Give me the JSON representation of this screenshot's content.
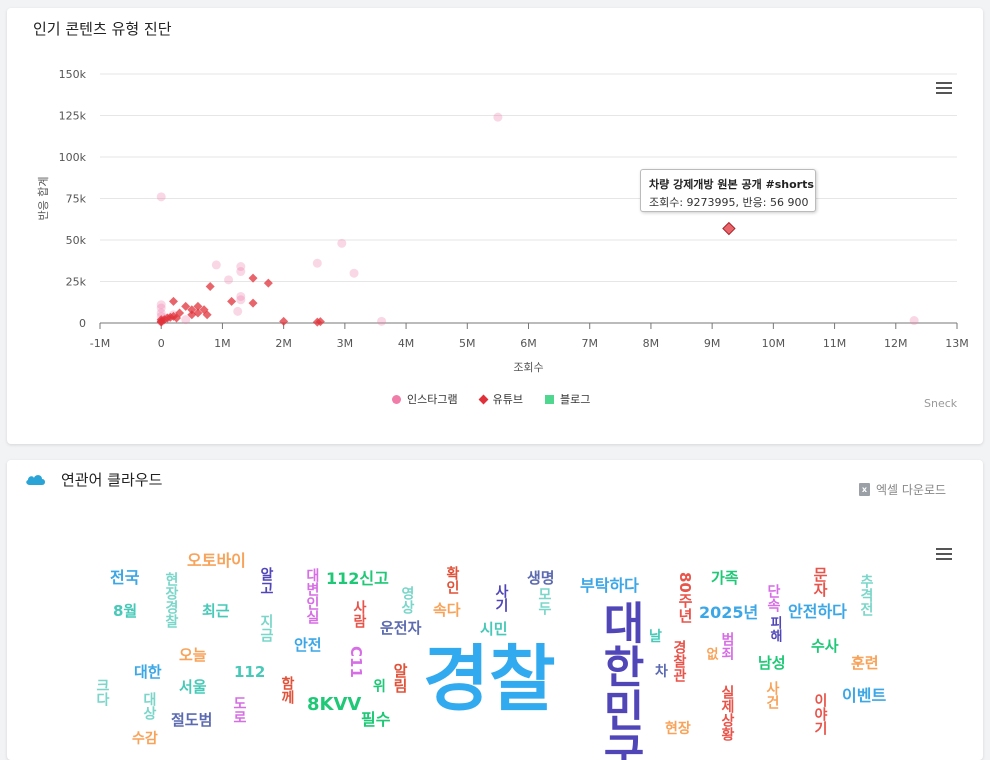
{
  "popular_chart": {
    "title": "인기 콘텐츠 유형 진단",
    "credit": "Sneck",
    "tooltip": {
      "title": "차량 강제개방 원본 공개 #shorts",
      "body": "조회수: 9273995, 반응: 56 900"
    },
    "legend": [
      {
        "label": "인스타그램",
        "color": "#f07ca8",
        "shape": "circle"
      },
      {
        "label": "유튜브",
        "color": "#e0313a",
        "shape": "diamond"
      },
      {
        "label": "블로그",
        "color": "#4fd78f",
        "shape": "square"
      }
    ]
  },
  "chart_data": {
    "type": "scatter",
    "title": "",
    "xlabel": "조회수",
    "ylabel": "반응 합계",
    "xlim": [
      -1000000,
      13000000
    ],
    "ylim": [
      0,
      150000
    ],
    "x_ticks": [
      {
        "value": -1000000,
        "label": "-1M"
      },
      {
        "value": 0,
        "label": "0"
      },
      {
        "value": 1000000,
        "label": "1M"
      },
      {
        "value": 2000000,
        "label": "2M"
      },
      {
        "value": 3000000,
        "label": "3M"
      },
      {
        "value": 4000000,
        "label": "4M"
      },
      {
        "value": 5000000,
        "label": "5M"
      },
      {
        "value": 6000000,
        "label": "6M"
      },
      {
        "value": 7000000,
        "label": "7M"
      },
      {
        "value": 8000000,
        "label": "8M"
      },
      {
        "value": 9000000,
        "label": "9M"
      },
      {
        "value": 10000000,
        "label": "10M"
      },
      {
        "value": 11000000,
        "label": "11M"
      },
      {
        "value": 12000000,
        "label": "12M"
      },
      {
        "value": 13000000,
        "label": "13M"
      }
    ],
    "y_ticks": [
      {
        "value": 0,
        "label": "0"
      },
      {
        "value": 25000,
        "label": "25k"
      },
      {
        "value": 50000,
        "label": "50k"
      },
      {
        "value": 75000,
        "label": "75k"
      },
      {
        "value": 100000,
        "label": "100k"
      },
      {
        "value": 125000,
        "label": "125k"
      },
      {
        "value": 150000,
        "label": "150k"
      }
    ],
    "legend_position": "bottom",
    "grid": "horizontal",
    "series": [
      {
        "name": "인스타그램",
        "color": "#f07ca8",
        "marker": "circle",
        "points": [
          [
            0,
            76000
          ],
          [
            5500000,
            124000
          ],
          [
            900000,
            35000
          ],
          [
            1300000,
            34000
          ],
          [
            1300000,
            31000
          ],
          [
            1100000,
            26000
          ],
          [
            1300000,
            16000
          ],
          [
            1300000,
            14000
          ],
          [
            2550000,
            36000
          ],
          [
            2950000,
            48000
          ],
          [
            3150000,
            30000
          ],
          [
            3600000,
            1000
          ],
          [
            12300000,
            1500
          ],
          [
            0,
            11000
          ],
          [
            0,
            9000
          ],
          [
            0,
            6000
          ],
          [
            0,
            4000
          ],
          [
            100000,
            3000
          ],
          [
            200000,
            5000
          ],
          [
            400000,
            2000
          ],
          [
            1250000,
            7000
          ],
          [
            0,
            1000
          ]
        ]
      },
      {
        "name": "유튜브",
        "color": "#e0313a",
        "marker": "diamond",
        "points": [
          [
            9273995,
            56900
          ],
          [
            1750000,
            24000
          ],
          [
            1500000,
            27000
          ],
          [
            800000,
            22000
          ],
          [
            1150000,
            13000
          ],
          [
            1500000,
            12000
          ],
          [
            200000,
            13000
          ],
          [
            400000,
            10000
          ],
          [
            500000,
            8000
          ],
          [
            600000,
            10000
          ],
          [
            700000,
            8000
          ],
          [
            750000,
            5000
          ],
          [
            600000,
            6000
          ],
          [
            500000,
            5000
          ],
          [
            300000,
            6000
          ],
          [
            250000,
            3000
          ],
          [
            200000,
            4000
          ],
          [
            150000,
            3500
          ],
          [
            100000,
            3000
          ],
          [
            50000,
            2000
          ],
          [
            0,
            2000
          ],
          [
            0,
            1000
          ],
          [
            0,
            500
          ],
          [
            2000000,
            1000
          ],
          [
            2550000,
            500
          ],
          [
            2600000,
            800
          ]
        ]
      },
      {
        "name": "블로그",
        "color": "#4fd78f",
        "marker": "square",
        "points": []
      }
    ]
  },
  "wordcloud": {
    "title": "연관어 클라우드",
    "excel_label": "엑셀 다운로드",
    "words": [
      {
        "text": "전국",
        "color": "#3ba7e6",
        "size": 16
      },
      {
        "text": "현장경찰",
        "color": "#7bd6c9",
        "size": 14,
        "vertical": true
      },
      {
        "text": "오토바이",
        "color": "#f8a35a",
        "size": 16
      },
      {
        "text": "알고",
        "color": "#5046b8",
        "size": 14,
        "vertical": true
      },
      {
        "text": "대변인실",
        "color": "#d66ee5",
        "size": 14,
        "vertical": true
      },
      {
        "text": "112신고",
        "color": "#1fc876",
        "size": 16
      },
      {
        "text": "확인",
        "color": "#e0533a",
        "size": 14,
        "vertical": true
      },
      {
        "text": "생명",
        "color": "#5c6bb0",
        "size": 15
      },
      {
        "text": "부탁하다",
        "color": "#3ba7e6",
        "size": 16
      },
      {
        "text": "80주년",
        "color": "#e8534a",
        "size": 15,
        "vertical": true
      },
      {
        "text": "가족",
        "color": "#1fc876",
        "size": 15
      },
      {
        "text": "문자",
        "color": "#e8534a",
        "size": 15,
        "vertical": true
      },
      {
        "text": "추격전",
        "color": "#7bd6c9",
        "size": 14,
        "vertical": true
      },
      {
        "text": "8월",
        "color": "#48c9b8",
        "size": 15
      },
      {
        "text": "최근",
        "color": "#48c9b8",
        "size": 15
      },
      {
        "text": "지금",
        "color": "#7bd6c9",
        "size": 14,
        "vertical": true
      },
      {
        "text": "사람",
        "color": "#e8534a",
        "size": 14,
        "vertical": true
      },
      {
        "text": "운전자",
        "color": "#5c6bb0",
        "size": 15
      },
      {
        "text": "속다",
        "color": "#f8a35a",
        "size": 15
      },
      {
        "text": "영상",
        "color": "#7bd6c9",
        "size": 14,
        "vertical": true
      },
      {
        "text": "사기",
        "color": "#5046b8",
        "size": 14,
        "vertical": true
      },
      {
        "text": "모두",
        "color": "#7bd6c9",
        "size": 14,
        "vertical": true
      },
      {
        "text": "시민",
        "color": "#48c9b8",
        "size": 15
      },
      {
        "text": "대한민국",
        "color": "#5046b8",
        "size": 44,
        "vertical": true
      },
      {
        "text": "2025년",
        "color": "#3ba7e6",
        "size": 16
      },
      {
        "text": "단속",
        "color": "#d66ee5",
        "size": 14,
        "vertical": true
      },
      {
        "text": "피해",
        "color": "#5046b8",
        "size": 13,
        "vertical": true
      },
      {
        "text": "안전하다",
        "color": "#3ba7e6",
        "size": 16
      },
      {
        "text": "안전",
        "color": "#3ba7e6",
        "size": 15
      },
      {
        "text": "C11",
        "color": "#d66ee5",
        "size": 15,
        "vertical": true
      },
      {
        "text": "날",
        "color": "#48c9b8",
        "size": 14
      },
      {
        "text": "경찰관",
        "color": "#e8534a",
        "size": 14,
        "vertical": true
      },
      {
        "text": "범죄",
        "color": "#d66ee5",
        "size": 14,
        "vertical": true
      },
      {
        "text": "수사",
        "color": "#1fc876",
        "size": 15
      },
      {
        "text": "대한",
        "color": "#3ba7e6",
        "size": 15
      },
      {
        "text": "오늘",
        "color": "#f8a35a",
        "size": 15
      },
      {
        "text": "112",
        "color": "#48c9b8",
        "size": 15
      },
      {
        "text": "함께",
        "color": "#e0533a",
        "size": 14,
        "vertical": true
      },
      {
        "text": "알림",
        "color": "#e0533a",
        "size": 15,
        "vertical": true
      },
      {
        "text": "경찰",
        "color": "#31aaf0",
        "size": 72
      },
      {
        "text": "차",
        "color": "#5c6bb0",
        "size": 14
      },
      {
        "text": "없",
        "color": "#f8a35a",
        "size": 13,
        "vertical": true
      },
      {
        "text": "남성",
        "color": "#1fc876",
        "size": 15
      },
      {
        "text": "훈련",
        "color": "#f8a35a",
        "size": 15
      },
      {
        "text": "크다",
        "color": "#7bd6c9",
        "size": 14,
        "vertical": true
      },
      {
        "text": "대상",
        "color": "#7bd6c9",
        "size": 14,
        "vertical": true
      },
      {
        "text": "서울",
        "color": "#48c9b8",
        "size": 15
      },
      {
        "text": "도로",
        "color": "#d66ee5",
        "size": 14,
        "vertical": true
      },
      {
        "text": "8KVV",
        "color": "#1fc876",
        "size": 18
      },
      {
        "text": "위",
        "color": "#1fc876",
        "size": 14
      },
      {
        "text": "실제상황",
        "color": "#e8534a",
        "size": 14,
        "vertical": true
      },
      {
        "text": "사건",
        "color": "#f8a35a",
        "size": 14,
        "vertical": true
      },
      {
        "text": "이벤트",
        "color": "#3ba7e6",
        "size": 16
      },
      {
        "text": "절도범",
        "color": "#5c6bb0",
        "size": 15
      },
      {
        "text": "필수",
        "color": "#1fc876",
        "size": 16
      },
      {
        "text": "이야기",
        "color": "#e8534a",
        "size": 14,
        "vertical": true
      },
      {
        "text": "현장",
        "color": "#f8a35a",
        "size": 14
      },
      {
        "text": "수감",
        "color": "#f8a35a",
        "size": 14
      }
    ]
  }
}
